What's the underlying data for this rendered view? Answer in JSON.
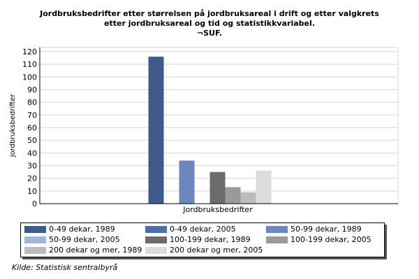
{
  "chart_data": {
    "type": "bar",
    "title_lines": [
      "Jordbruksbedrifter etter størrelsen på  jordbruksareal i drift og etter valgkrets",
      "etter jordbruksareal og tid og statistikkvariabel.",
      "¬SUF."
    ],
    "ylabel": "jordbruksbedrifter",
    "xlabel": "Jordbruksbedrifter",
    "categories": [
      "Jordbruksbedrifter"
    ],
    "ylim": [
      0,
      120
    ],
    "yticks": [
      0,
      10,
      20,
      30,
      40,
      50,
      60,
      70,
      80,
      90,
      100,
      110,
      120
    ],
    "grid": true,
    "legend_position": "bottom",
    "series": [
      {
        "name": "0-49 dekar, 1989",
        "values": [
          116
        ],
        "color": "#3f5b8c"
      },
      {
        "name": "0-49 dekar, 2005",
        "values": [
          0
        ],
        "color": "#4d6ea8"
      },
      {
        "name": "50-99 dekar, 1989",
        "values": [
          34
        ],
        "color": "#6b87bd"
      },
      {
        "name": "50-99 dekar, 2005",
        "values": [
          0
        ],
        "color": "#a3b6da"
      },
      {
        "name": "100-199 dekar, 1989",
        "values": [
          25
        ],
        "color": "#6c6c6c"
      },
      {
        "name": "100-199 dekar, 2005",
        "values": [
          13
        ],
        "color": "#9a9a9a"
      },
      {
        "name": "200 dekar og mer, 1989",
        "values": [
          9
        ],
        "color": "#bcbcbc"
      },
      {
        "name": "200 dekar og mer, 2005",
        "values": [
          26
        ],
        "color": "#dcdcdc"
      }
    ]
  },
  "source": "Kilde: Statistisk sentralbyrå"
}
